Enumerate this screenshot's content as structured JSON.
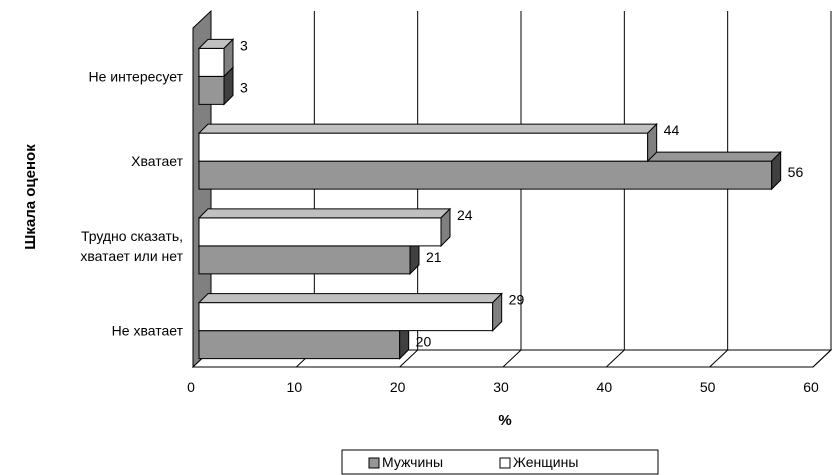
{
  "chart_data": {
    "type": "bar",
    "orientation": "horizontal",
    "three_d": true,
    "categories": [
      "Не интересует",
      "Хватает",
      "Трудно сказать, хватает или нет",
      "Не хватает"
    ],
    "category_lines": [
      [
        "Не интересует"
      ],
      [
        "Хватает"
      ],
      [
        "Трудно сказать,",
        "хватает или нет"
      ],
      [
        "Не хватает"
      ]
    ],
    "series": [
      {
        "name": "Мужчины",
        "values": [
          3,
          56,
          21,
          20
        ],
        "color": "#969696"
      },
      {
        "name": "Женщины",
        "values": [
          3,
          44,
          24,
          29
        ],
        "color": "#ffffff"
      }
    ],
    "xlabel": "%",
    "ylabel": "Шкала оценок",
    "xlim": [
      0,
      60
    ],
    "xticks": [
      0,
      10,
      20,
      30,
      40,
      50,
      60
    ],
    "grid": true,
    "legend_position": "bottom"
  }
}
